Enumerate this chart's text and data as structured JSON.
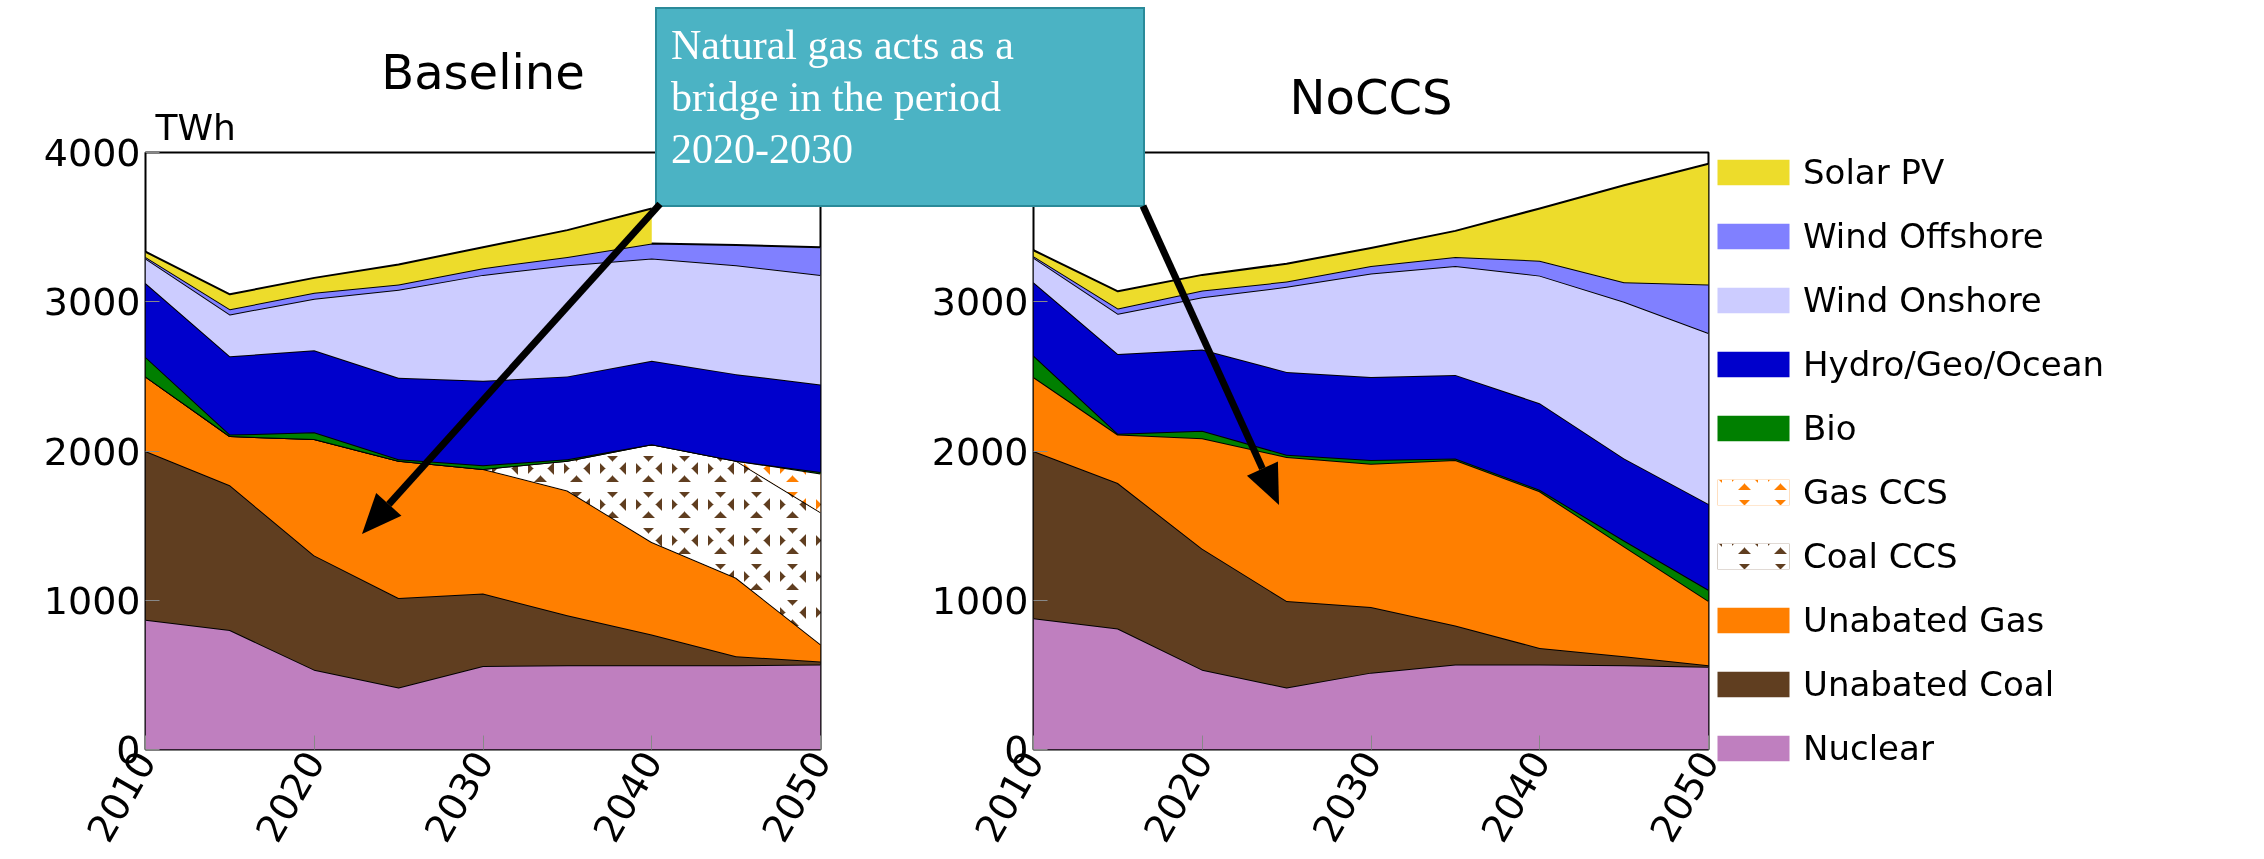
{
  "chart_data": [
    {
      "type": "area",
      "stacked": true,
      "title": "Baseline",
      "ylabel": "TWh",
      "x": [
        2010,
        2015,
        2020,
        2025,
        2030,
        2035,
        2040,
        2045,
        2050
      ],
      "xlim": [
        2010,
        2050
      ],
      "xticks": [
        2010,
        2020,
        2030,
        2040,
        2050
      ],
      "ylim": [
        0,
        4000
      ],
      "yticks": [
        0,
        1000,
        2000,
        3000,
        4000
      ],
      "grid": false,
      "legend": "right",
      "series": [
        {
          "name": "Nuclear",
          "color": "#bf7fbf",
          "values": [
            870,
            800,
            535,
            415,
            560,
            565,
            565,
            565,
            570
          ]
        },
        {
          "name": "Unabated Coal",
          "color": "#603e20",
          "values": [
            1130,
            970,
            765,
            600,
            485,
            335,
            205,
            60,
            20
          ]
        },
        {
          "name": "Unabated Gas",
          "color": "#ff7f00",
          "values": [
            500,
            330,
            780,
            920,
            835,
            835,
            620,
            525,
            115
          ]
        },
        {
          "name": "Coal CCS",
          "color": "#603e20",
          "values": [
            0,
            0,
            0,
            0,
            0,
            200,
            655,
            785,
            885
          ]
        },
        {
          "name": "Gas CCS",
          "color": "#ff7f00",
          "values": [
            0,
            0,
            0,
            0,
            0,
            0,
            0,
            0,
            260
          ]
        },
        {
          "name": "Bio",
          "color": "#007f00",
          "values": [
            130,
            10,
            45,
            10,
            25,
            10,
            0,
            0,
            10
          ]
        },
        {
          "name": "Hydro/Geo/Ocean",
          "color": "#0000cc",
          "values": [
            495,
            525,
            550,
            545,
            565,
            555,
            560,
            580,
            585
          ]
        },
        {
          "name": "Wind Onshore",
          "color": "#ccccff",
          "values": [
            165,
            280,
            345,
            590,
            710,
            745,
            685,
            730,
            735
          ]
        },
        {
          "name": "Wind Offshore",
          "color": "#8080ff",
          "values": [
            10,
            35,
            40,
            35,
            45,
            55,
            100,
            135,
            185
          ]
        },
        {
          "name": "Solar PV",
          "color": "#eddc2b",
          "values": [
            35,
            100,
            100,
            135,
            140,
            180,
            235,
            null,
            null
          ]
        }
      ],
      "annotations": [
        "Natural gas acts as a bridge in the period 2020-2030"
      ]
    },
    {
      "type": "area",
      "stacked": true,
      "title": "NoCCS",
      "x": [
        2010,
        2015,
        2020,
        2025,
        2030,
        2035,
        2040,
        2045,
        2050
      ],
      "xlim": [
        2010,
        2050
      ],
      "xticks": [
        2010,
        2020,
        2030,
        2040,
        2050
      ],
      "ylim": [
        0,
        4000
      ],
      "yticks": [
        0,
        1000,
        2000,
        3000
      ],
      "grid": false,
      "series": [
        {
          "color": "#bf7fbf",
          "values": [
            880,
            810,
            535,
            415,
            515,
            570,
            570,
            565,
            555
          ]
        },
        {
          "color": "#603e20",
          "values": [
            1120,
            975,
            810,
            580,
            440,
            260,
            110,
            60,
            10
          ]
        },
        {
          "color": "#ff7f00",
          "values": [
            495,
            325,
            740,
            965,
            960,
            1110,
            1050,
            735,
            430
          ]
        },
        {
          "color": "#603e20",
          "values": [
            null,
            null,
            null,
            null,
            null,
            null,
            null,
            null,
            null
          ]
        },
        {
          "color": "#ff7f00",
          "values": [
            null,
            null,
            null,
            null,
            null,
            null,
            null,
            null,
            null
          ]
        },
        {
          "color": "#007f00",
          "values": [
            145,
            5,
            50,
            15,
            25,
            10,
            10,
            40,
            75
          ]
        },
        {
          "color": "#0000cc",
          "values": [
            490,
            535,
            545,
            555,
            555,
            560,
            580,
            550,
            575
          ]
        },
        {
          "color": "#ccccff",
          "values": [
            165,
            270,
            350,
            570,
            695,
            730,
            855,
            1050,
            1145
          ]
        },
        {
          "color": "#8080ff",
          "values": [
            10,
            35,
            45,
            35,
            50,
            60,
            100,
            130,
            325
          ]
        },
        {
          "color": "#eddc2b",
          "values": [
            40,
            115,
            105,
            120,
            120,
            175,
            350,
            650,
            810
          ]
        }
      ]
    }
  ]
}
